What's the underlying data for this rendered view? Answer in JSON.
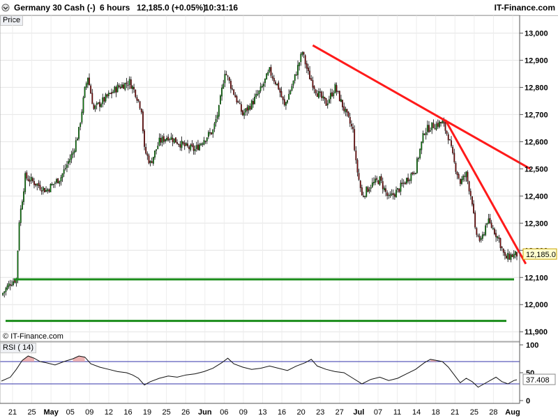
{
  "header": {
    "title": "Germany 30 Cash (-)",
    "timeframe": "6 hours",
    "quote": "12,185.0 (+0.05%)",
    "time": "10:31:16",
    "brand": "IT-Finance.com"
  },
  "panels": {
    "price_label": "Price",
    "rsi_label": "RSI ( 14)",
    "copyright": "© IT-Finance.com"
  },
  "price_axis": {
    "ticks": [
      "13,000",
      "12,900",
      "12,800",
      "12,700",
      "12,600",
      "12,500",
      "12,400",
      "12,300",
      "12,200",
      "12,100",
      "12,000",
      "11,900"
    ],
    "last_price_label": "12,185.0"
  },
  "rsi_axis": {
    "ticks": [
      "100",
      "50",
      "0"
    ],
    "last_value_label": "37.408"
  },
  "x_axis": {
    "ticks": [
      "21",
      "25",
      "May",
      "05",
      "09",
      "12",
      "16",
      "19",
      "25",
      "26",
      "Jun",
      "06",
      "09",
      "13",
      "16",
      "20",
      "23",
      "27",
      "Jul",
      "07",
      "11",
      "14",
      "18",
      "21",
      "25",
      "28",
      "Aug"
    ]
  },
  "colors": {
    "bull_candle": "#0a7a0a",
    "bear_candle": "#7a0a0a",
    "trendline": "#ff1a1a",
    "support": "#1a8c1a",
    "rsi_line": "#111111",
    "rsi_band": "#3333aa"
  },
  "chart_data": [
    {
      "type": "candlestick",
      "series_points": [
        [
          0,
          12035
        ],
        [
          6,
          12080
        ],
        [
          10,
          12095
        ],
        [
          12,
          12310
        ],
        [
          16,
          12470
        ],
        [
          22,
          12450
        ],
        [
          30,
          12420
        ],
        [
          40,
          12470
        ],
        [
          48,
          12560
        ],
        [
          52,
          12640
        ],
        [
          56,
          12790
        ],
        [
          58,
          12840
        ],
        [
          62,
          12720
        ],
        [
          70,
          12760
        ],
        [
          78,
          12800
        ],
        [
          86,
          12820
        ],
        [
          90,
          12780
        ],
        [
          94,
          12720
        ],
        [
          96,
          12570
        ],
        [
          100,
          12520
        ],
        [
          106,
          12600
        ],
        [
          112,
          12620
        ],
        [
          118,
          12600
        ],
        [
          124,
          12580
        ],
        [
          130,
          12570
        ],
        [
          136,
          12610
        ],
        [
          142,
          12640
        ],
        [
          146,
          12720
        ],
        [
          150,
          12860
        ],
        [
          156,
          12780
        ],
        [
          162,
          12700
        ],
        [
          168,
          12740
        ],
        [
          174,
          12790
        ],
        [
          180,
          12860
        ],
        [
          186,
          12800
        ],
        [
          190,
          12730
        ],
        [
          196,
          12820
        ],
        [
          202,
          12930
        ],
        [
          206,
          12850
        ],
        [
          212,
          12780
        ],
        [
          218,
          12740
        ],
        [
          224,
          12800
        ],
        [
          230,
          12720
        ],
        [
          236,
          12640
        ],
        [
          238,
          12520
        ],
        [
          242,
          12400
        ],
        [
          248,
          12440
        ],
        [
          254,
          12460
        ],
        [
          260,
          12390
        ],
        [
          266,
          12420
        ],
        [
          272,
          12460
        ],
        [
          278,
          12500
        ],
        [
          284,
          12640
        ],
        [
          290,
          12660
        ],
        [
          296,
          12670
        ],
        [
          300,
          12620
        ],
        [
          304,
          12520
        ],
        [
          308,
          12450
        ],
        [
          312,
          12480
        ],
        [
          316,
          12380
        ],
        [
          318,
          12270
        ],
        [
          322,
          12230
        ],
        [
          326,
          12310
        ],
        [
          330,
          12280
        ],
        [
          334,
          12240
        ],
        [
          338,
          12170
        ],
        [
          342,
          12180
        ],
        [
          346,
          12185
        ]
      ],
      "x_index_range": [
        0,
        346
      ],
      "ylim": [
        11880,
        13050
      ],
      "trendlines": [
        {
          "from": [
            209,
            12955
          ],
          "to": [
            355,
            12500
          ]
        },
        {
          "from": [
            298,
            12680
          ],
          "to": [
            352,
            12150
          ]
        }
      ],
      "support_levels": [
        12093,
        11940
      ],
      "last_price": 12185.0
    },
    {
      "type": "line",
      "name": "RSI ( 14)",
      "points": [
        [
          0,
          35
        ],
        [
          6,
          42
        ],
        [
          10,
          56
        ],
        [
          14,
          72
        ],
        [
          18,
          80
        ],
        [
          22,
          76
        ],
        [
          26,
          70
        ],
        [
          30,
          68
        ],
        [
          36,
          64
        ],
        [
          42,
          70
        ],
        [
          48,
          75
        ],
        [
          52,
          80
        ],
        [
          56,
          78
        ],
        [
          60,
          66
        ],
        [
          66,
          60
        ],
        [
          72,
          56
        ],
        [
          78,
          52
        ],
        [
          84,
          50
        ],
        [
          88,
          46
        ],
        [
          92,
          40
        ],
        [
          96,
          28
        ],
        [
          100,
          34
        ],
        [
          106,
          40
        ],
        [
          112,
          44
        ],
        [
          118,
          42
        ],
        [
          124,
          46
        ],
        [
          130,
          48
        ],
        [
          136,
          52
        ],
        [
          142,
          58
        ],
        [
          148,
          68
        ],
        [
          152,
          76
        ],
        [
          156,
          66
        ],
        [
          162,
          60
        ],
        [
          168,
          56
        ],
        [
          174,
          58
        ],
        [
          180,
          62
        ],
        [
          186,
          58
        ],
        [
          192,
          54
        ],
        [
          198,
          62
        ],
        [
          204,
          68
        ],
        [
          208,
          74
        ],
        [
          212,
          62
        ],
        [
          218,
          56
        ],
        [
          224,
          52
        ],
        [
          230,
          50
        ],
        [
          236,
          40
        ],
        [
          242,
          30
        ],
        [
          248,
          38
        ],
        [
          254,
          42
        ],
        [
          260,
          36
        ],
        [
          266,
          40
        ],
        [
          272,
          48
        ],
        [
          278,
          56
        ],
        [
          284,
          68
        ],
        [
          288,
          74
        ],
        [
          292,
          72
        ],
        [
          296,
          70
        ],
        [
          300,
          60
        ],
        [
          304,
          46
        ],
        [
          308,
          32
        ],
        [
          312,
          40
        ],
        [
          316,
          34
        ],
        [
          320,
          24
        ],
        [
          324,
          30
        ],
        [
          328,
          36
        ],
        [
          332,
          42
        ],
        [
          336,
          34
        ],
        [
          340,
          30
        ],
        [
          344,
          36
        ],
        [
          346,
          37.408
        ]
      ],
      "ylim": [
        0,
        100
      ],
      "bands": [
        70,
        30
      ],
      "last_value": 37.408
    }
  ]
}
